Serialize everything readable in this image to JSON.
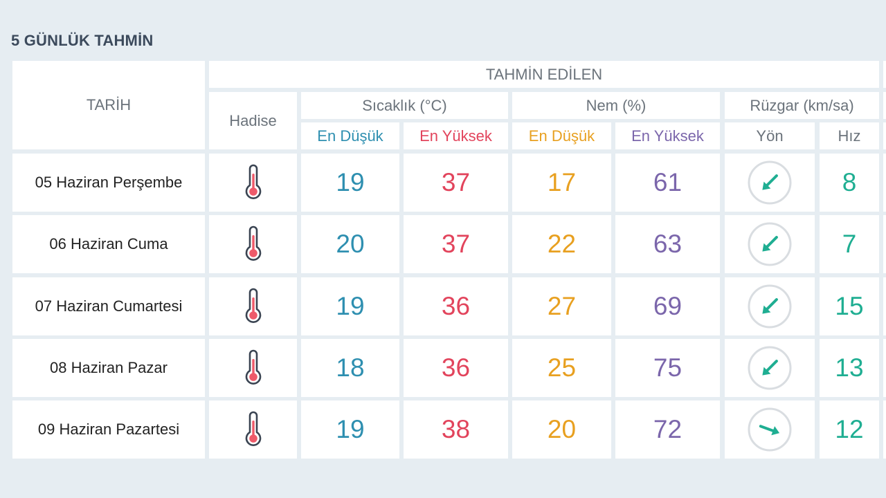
{
  "title": "5 GÜNLÜK TAHMİN",
  "header": {
    "date_col": "TARİH",
    "forecast_group": "TAHMİN EDİLEN",
    "hadise": "Hadise",
    "temperature": "Sıcaklık (°C)",
    "humidity": "Nem (%)",
    "wind": "Rüzgar (km/sa)",
    "temp_min": "En Düşük",
    "temp_max": "En Yüksek",
    "hum_min": "En Düşük",
    "hum_max": "En Yüksek",
    "wind_dir": "Yön",
    "wind_speed": "Hız"
  },
  "colors": {
    "background": "#e6edf2",
    "min": "#2e8fb0",
    "max": "#e2445c",
    "hum_min": "#e8a020",
    "hum_max": "#7b66ab",
    "wind": "#1fae92"
  },
  "rows": [
    {
      "date": "05 Haziran Perşembe",
      "icon": "thermometer-icon",
      "temp_min": "19",
      "temp_max": "37",
      "hum_min": "17",
      "hum_max": "61",
      "wind_dir_icon": "arrow-southwest-icon",
      "wind_speed": "8"
    },
    {
      "date": "06 Haziran Cuma",
      "icon": "thermometer-icon",
      "temp_min": "20",
      "temp_max": "37",
      "hum_min": "22",
      "hum_max": "63",
      "wind_dir_icon": "arrow-southwest-icon",
      "wind_speed": "7"
    },
    {
      "date": "07 Haziran Cumartesi",
      "icon": "thermometer-icon",
      "temp_min": "19",
      "temp_max": "36",
      "hum_min": "27",
      "hum_max": "69",
      "wind_dir_icon": "arrow-southwest-icon",
      "wind_speed": "15"
    },
    {
      "date": "08 Haziran Pazar",
      "icon": "thermometer-icon",
      "temp_min": "18",
      "temp_max": "36",
      "hum_min": "25",
      "hum_max": "75",
      "wind_dir_icon": "arrow-southwest-icon",
      "wind_speed": "13"
    },
    {
      "date": "09 Haziran Pazartesi",
      "icon": "thermometer-icon",
      "temp_min": "19",
      "temp_max": "38",
      "hum_min": "20",
      "hum_max": "72",
      "wind_dir_icon": "arrow-southeast-icon",
      "wind_speed": "12"
    }
  ]
}
